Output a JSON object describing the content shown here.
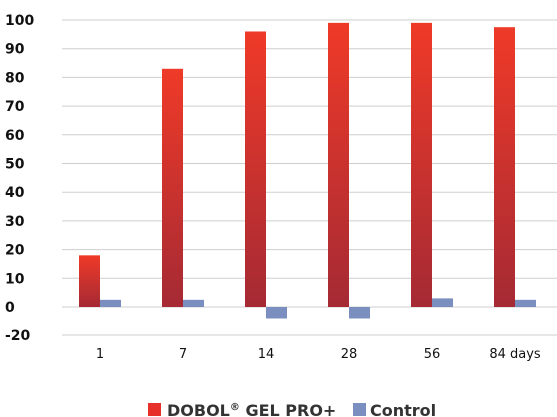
{
  "chart_data": {
    "type": "bar",
    "categories": [
      "1",
      "7",
      "14",
      "28",
      "56",
      "84 days"
    ],
    "series": [
      {
        "name": "DOBOL® GEL PRO+",
        "values": [
          18,
          83,
          96,
          99,
          99,
          97.5
        ],
        "color": "#e8302a",
        "color_dark": "#a52a34"
      },
      {
        "name": "Control",
        "values": [
          2.5,
          2.5,
          -4,
          -4,
          3,
          2.5
        ],
        "color": "#7a8fc0"
      }
    ],
    "y_ticks": [
      "100",
      "90",
      "80",
      "70",
      "60",
      "50",
      "40",
      "30",
      "20",
      "10",
      "0",
      "-20"
    ],
    "legend_position": "bottom-center",
    "grid": true
  },
  "legend": {
    "series1_main": "DOBOL",
    "series1_reg": "®",
    "series1_rest": " GEL PRO+",
    "series2": "Control"
  }
}
